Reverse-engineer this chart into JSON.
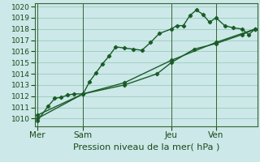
{
  "background_color": "#cce8e8",
  "grid_color": "#99ccbb",
  "line_color": "#1a5c28",
  "marker": "D",
  "markersize": 2.2,
  "linewidth": 1.0,
  "xlabel_text": "Pression niveau de la mer( hPa )",
  "ylim": [
    1009.3,
    1020.3
  ],
  "yticks": [
    1010,
    1011,
    1012,
    1013,
    1014,
    1015,
    1016,
    1017,
    1018,
    1019,
    1020
  ],
  "day_labels": [
    "Mer",
    "Sam",
    "Jeu",
    "Ven"
  ],
  "day_positions": [
    0.0,
    0.21,
    0.615,
    0.82
  ],
  "vline_x": [
    0.0,
    0.21,
    0.615,
    0.82
  ],
  "series1_x": [
    0.0,
    0.05,
    0.08,
    0.11,
    0.14,
    0.17,
    0.21,
    0.24,
    0.27,
    0.3,
    0.33,
    0.36,
    0.4,
    0.44,
    0.48,
    0.52,
    0.56,
    0.615,
    0.64,
    0.67,
    0.7,
    0.73,
    0.76,
    0.79,
    0.82,
    0.86,
    0.9,
    0.94,
    0.97,
    1.0
  ],
  "series1_y": [
    1009.8,
    1011.1,
    1011.8,
    1011.9,
    1012.1,
    1012.2,
    1012.2,
    1013.3,
    1014.1,
    1014.9,
    1015.6,
    1016.4,
    1016.3,
    1016.2,
    1016.1,
    1016.8,
    1017.6,
    1018.0,
    1018.3,
    1018.3,
    1019.2,
    1019.7,
    1019.3,
    1018.6,
    1019.0,
    1018.3,
    1018.1,
    1018.0,
    1017.5,
    1018.0
  ],
  "series2_x": [
    0.0,
    0.21,
    0.4,
    0.55,
    0.615,
    0.72,
    0.82,
    0.94,
    1.0
  ],
  "series2_y": [
    1010.3,
    1012.2,
    1013.0,
    1014.0,
    1015.0,
    1016.2,
    1016.7,
    1017.5,
    1018.0
  ],
  "series3_x": [
    0.0,
    0.21,
    0.4,
    0.615,
    0.82,
    1.0
  ],
  "series3_y": [
    1010.0,
    1012.2,
    1013.2,
    1015.2,
    1016.8,
    1018.0
  ],
  "xlim": [
    -0.01,
    1.01
  ],
  "xlabel_fontsize": 8.0,
  "tick_fontsize": 6.5,
  "label_fontsize": 7.5
}
